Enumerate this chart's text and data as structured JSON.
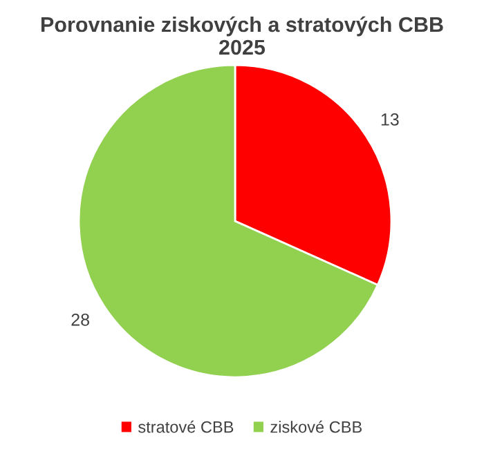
{
  "chart_data": {
    "type": "pie",
    "title": "Porovnanie ziskových a stratových CBB\n2025",
    "categories": [
      "stratové CBB",
      "ziskové CBB"
    ],
    "values": [
      13,
      28
    ],
    "colors": [
      "#ff0000",
      "#92d050"
    ],
    "data_labels": true,
    "legend": "bottom"
  }
}
